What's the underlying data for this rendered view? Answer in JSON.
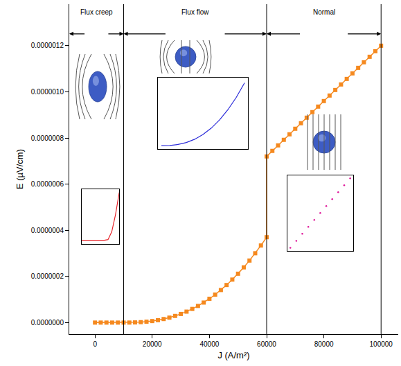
{
  "chart_data": [
    {
      "type": "line",
      "xlabel": "J (A/m²)",
      "ylabel": "E (µV/cm)",
      "color": "#f5891f",
      "marker": "square",
      "grid": false,
      "x": [
        0,
        2000,
        4000,
        6000,
        8000,
        10000,
        12000,
        14000,
        16000,
        18000,
        20000,
        22000,
        24000,
        26000,
        28000,
        30000,
        32000,
        34000,
        36000,
        38000,
        40000,
        42000,
        44000,
        46000,
        48000,
        50000,
        52000,
        54000,
        56000,
        58000,
        60000,
        60000,
        62000,
        64000,
        66000,
        68000,
        70000,
        72000,
        74000,
        76000,
        78000,
        80000,
        82000,
        84000,
        86000,
        88000,
        90000,
        92000,
        94000,
        96000,
        98000,
        100000
      ],
      "values": [
        0,
        0,
        0,
        0,
        0,
        0,
        1.2e-10,
        6.7e-10,
        1.8e-09,
        3.8e-09,
        6.6e-09,
        1.04e-08,
        1.54e-08,
        2.14e-08,
        2.88e-08,
        3.74e-08,
        4.75e-08,
        5.91e-08,
        7.21e-08,
        8.68e-08,
        1.032e-07,
        1.212e-07,
        1.411e-07,
        1.628e-07,
        1.863e-07,
        2.118e-07,
        2.393e-07,
        2.688e-07,
        3.004e-07,
        3.341e-07,
        3.7e-07,
        7.2e-07,
        7.44e-07,
        7.68e-07,
        7.92e-07,
        8.16e-07,
        8.4e-07,
        8.64e-07,
        8.88e-07,
        9.12e-07,
        9.36e-07,
        9.6e-07,
        9.84e-07,
        1.008e-06,
        1.032e-06,
        1.056e-06,
        1.08e-06,
        1.104e-06,
        1.128e-06,
        1.152e-06,
        1.176e-06,
        1.2e-06
      ],
      "xlim": [
        -9000,
        106000
      ],
      "ylim": [
        -5e-08,
        1.38e-06
      ],
      "xticks": [
        0,
        20000,
        40000,
        60000,
        80000,
        100000
      ],
      "yticks": [
        {
          "value": 0,
          "label": "0.0000000"
        },
        {
          "value": 2e-07,
          "label": "0.0000002"
        },
        {
          "value": 4e-07,
          "label": "0.0000004"
        },
        {
          "value": 6e-07,
          "label": "0.0000006"
        },
        {
          "value": 8e-07,
          "label": "0.0000008"
        },
        {
          "value": 1e-06,
          "label": "0.0000010"
        },
        {
          "value": 1.2e-06,
          "label": "0.0000012"
        }
      ],
      "regions": [
        {
          "label": "Flux creep",
          "start": -9000,
          "end": 10000
        },
        {
          "label": "Flux flow",
          "start": 10000,
          "end": 60000
        },
        {
          "label": "Normal",
          "start": 60000,
          "end": 100000
        }
      ]
    },
    {
      "type": "line",
      "color": "#e8242b",
      "marker": "none",
      "tick_labels": false,
      "x": [
        0,
        1000,
        2000,
        3000,
        4000,
        5000,
        6000,
        7000,
        8000,
        9000,
        10000
      ],
      "values": [
        0,
        0,
        0,
        0,
        0,
        0,
        0,
        0.02,
        0.25,
        0.75,
        1.4
      ],
      "xlim": [
        0,
        10000
      ],
      "ylim": [
        -0.1,
        1.5
      ]
    },
    {
      "type": "line",
      "color": "#2b2bd9",
      "marker": "none",
      "tick_labels": false,
      "x": [
        10000,
        15000,
        20000,
        25000,
        30000,
        35000,
        40000,
        45000,
        50000,
        55000,
        60000
      ],
      "values": [
        0,
        1.17e-09,
        6.6e-09,
        1.82e-08,
        3.74e-08,
        6.54e-08,
        1.032e-07,
        1.517e-07,
        2.118e-07,
        2.843e-07,
        3.7e-07
      ],
      "xlim": [
        8000,
        62000
      ],
      "ylim": [
        -2e-08,
        4e-07
      ]
    },
    {
      "type": "scatter",
      "color": "#e0179a",
      "marker": "dot",
      "tick_labels": false,
      "x": [
        60000,
        64000,
        68000,
        72000,
        76000,
        80000,
        84000,
        88000,
        92000,
        96000,
        100000
      ],
      "values": [
        7.2e-07,
        7.68e-07,
        8.16e-07,
        8.64e-07,
        9.12e-07,
        9.6e-07,
        1.008e-06,
        1.056e-06,
        1.104e-06,
        1.152e-06,
        1.2e-06
      ],
      "xlim": [
        58000,
        102000
      ],
      "ylim": [
        7e-07,
        1.22e-06
      ]
    }
  ]
}
